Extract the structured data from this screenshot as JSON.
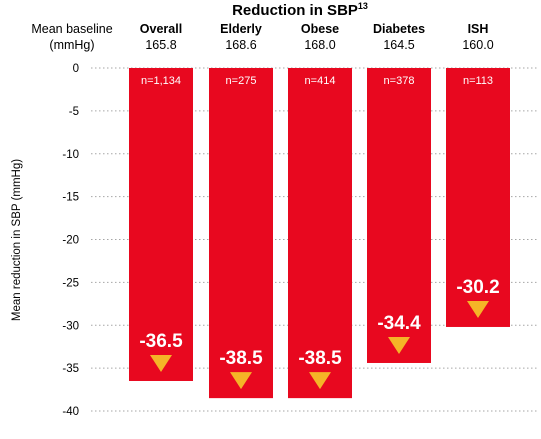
{
  "chart_data": {
    "type": "bar",
    "title": "Reduction in SBP",
    "title_superscript": "13",
    "ylabel": "Mean reduction in SBP (mmHg)",
    "ylim": [
      -40,
      0
    ],
    "yticks": [
      0,
      -5,
      -10,
      -15,
      -20,
      -25,
      -30,
      -35,
      -40
    ],
    "grid": true,
    "baseline_header": "Mean baseline",
    "baseline_unit": "(mmHg)",
    "categories": [
      "Overall",
      "Elderly",
      "Obese",
      "Diabetes",
      "ISH"
    ],
    "baselines": [
      "165.8",
      "168.6",
      "168.0",
      "164.5",
      "160.0"
    ],
    "sample_sizes": [
      "n=1,134",
      "n=275",
      "n=414",
      "n=378",
      "n=113"
    ],
    "values": [
      -36.5,
      -38.5,
      -38.5,
      -34.4,
      -30.2
    ],
    "value_labels": [
      "-36.5",
      "-38.5",
      "-38.5",
      "-34.4",
      "-30.2"
    ],
    "colors": {
      "bar": "#e8081f",
      "arrow": "#f5b427",
      "grid": "#a6a6a6",
      "text": "#000000",
      "value_text": "#ffffff"
    }
  }
}
